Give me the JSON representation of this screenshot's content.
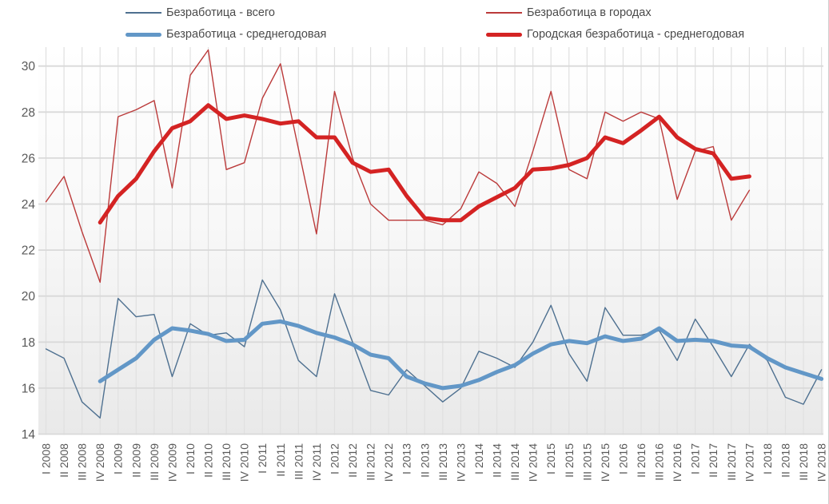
{
  "chart_data": {
    "type": "line",
    "title": "",
    "legend_position": "top",
    "grid": true,
    "y_axis": {
      "min": 14,
      "max": 30,
      "step": 2,
      "ticks": [
        14,
        16,
        18,
        20,
        22,
        24,
        26,
        28,
        30
      ]
    },
    "categories": [
      "I 2008",
      "II 2008",
      "III 2008",
      "IV 2008",
      "I 2009",
      "II 2009",
      "III 2009",
      "IV 2009",
      "I 2010",
      "II 2010",
      "III 2010",
      "IV 2010",
      "I 2011",
      "II 2011",
      "III 2011",
      "IV 2011",
      "I 2012",
      "II 2012",
      "III 2012",
      "IV 2012",
      "I 2013",
      "II 2013",
      "III 2013",
      "IV 2013",
      "I 2014",
      "II 2014",
      "III 2014",
      "IV 2014",
      "I 2015",
      "II 2015",
      "III 2015",
      "IV 2015",
      "I 2016",
      "II 2016",
      "III 2016",
      "IV 2016",
      "I 2017",
      "II 2017",
      "III 2017",
      "IV 2017",
      "I 2018",
      "II 2018",
      "III 2018",
      "IV 2018"
    ],
    "series": [
      {
        "name": "Безработица - всего",
        "style": "thin",
        "color": "#4e7090",
        "values": [
          17.7,
          17.3,
          15.4,
          14.7,
          19.9,
          19.1,
          19.2,
          16.5,
          18.8,
          18.3,
          18.4,
          17.8,
          20.7,
          19.4,
          17.2,
          16.5,
          20.1,
          18.0,
          15.9,
          15.7,
          16.8,
          16.1,
          15.4,
          16.0,
          17.6,
          17.3,
          16.9,
          18.0,
          19.6,
          17.5,
          16.3,
          19.5,
          18.3,
          18.3,
          18.5,
          17.2,
          19.0,
          17.8,
          16.5,
          17.9,
          17.2,
          15.6,
          15.3,
          16.8
        ]
      },
      {
        "name": "Безработица в городах",
        "style": "thin",
        "color": "#bb3a3a",
        "values": [
          24.1,
          25.2,
          22.8,
          20.6,
          27.8,
          28.1,
          28.5,
          24.7,
          29.6,
          30.7,
          25.5,
          25.8,
          28.6,
          30.1,
          26.4,
          22.7,
          28.9,
          26.0,
          24.0,
          23.3,
          23.3,
          23.3,
          23.1,
          23.8,
          25.4,
          24.9,
          23.9,
          26.3,
          28.9,
          25.5,
          25.1,
          28.0,
          27.6,
          28.0,
          27.7,
          24.2,
          26.3,
          26.5,
          23.3,
          24.6,
          null,
          null,
          null,
          null
        ]
      },
      {
        "name": "Безработица - среднегодовая",
        "style": "thick",
        "color": "#6297c7",
        "values": [
          null,
          null,
          null,
          16.3,
          16.8,
          17.3,
          18.1,
          18.6,
          18.5,
          18.35,
          18.05,
          18.1,
          18.8,
          18.9,
          18.7,
          18.4,
          18.2,
          17.9,
          17.45,
          17.3,
          16.5,
          16.2,
          16.0,
          16.1,
          16.35,
          16.7,
          17.0,
          17.5,
          17.9,
          18.05,
          17.95,
          18.25,
          18.05,
          18.15,
          18.6,
          18.05,
          18.1,
          18.05,
          17.85,
          17.8,
          17.3,
          16.9,
          16.65,
          16.4
        ]
      },
      {
        "name": "Городская безработица - среднегодовая",
        "style": "thick",
        "color": "#d42323",
        "values": [
          null,
          null,
          null,
          23.2,
          24.35,
          25.1,
          26.3,
          27.3,
          27.6,
          28.3,
          27.7,
          27.85,
          27.7,
          27.5,
          27.6,
          26.9,
          26.9,
          25.8,
          25.4,
          25.5,
          24.35,
          23.4,
          23.3,
          23.3,
          23.9,
          24.3,
          24.7,
          25.5,
          25.55,
          25.7,
          26.0,
          26.9,
          26.65,
          27.2,
          27.8,
          26.9,
          26.4,
          26.2,
          25.1,
          25.2,
          null,
          null,
          null,
          null
        ]
      }
    ]
  },
  "palette": {
    "grid_horizontal": "#d9d9d9",
    "grid_vertical": "#e0e0e0",
    "axis_text": "#595959",
    "plot_bg_top": "#ffffff",
    "plot_bg_bottom": "#e9e9e9"
  }
}
